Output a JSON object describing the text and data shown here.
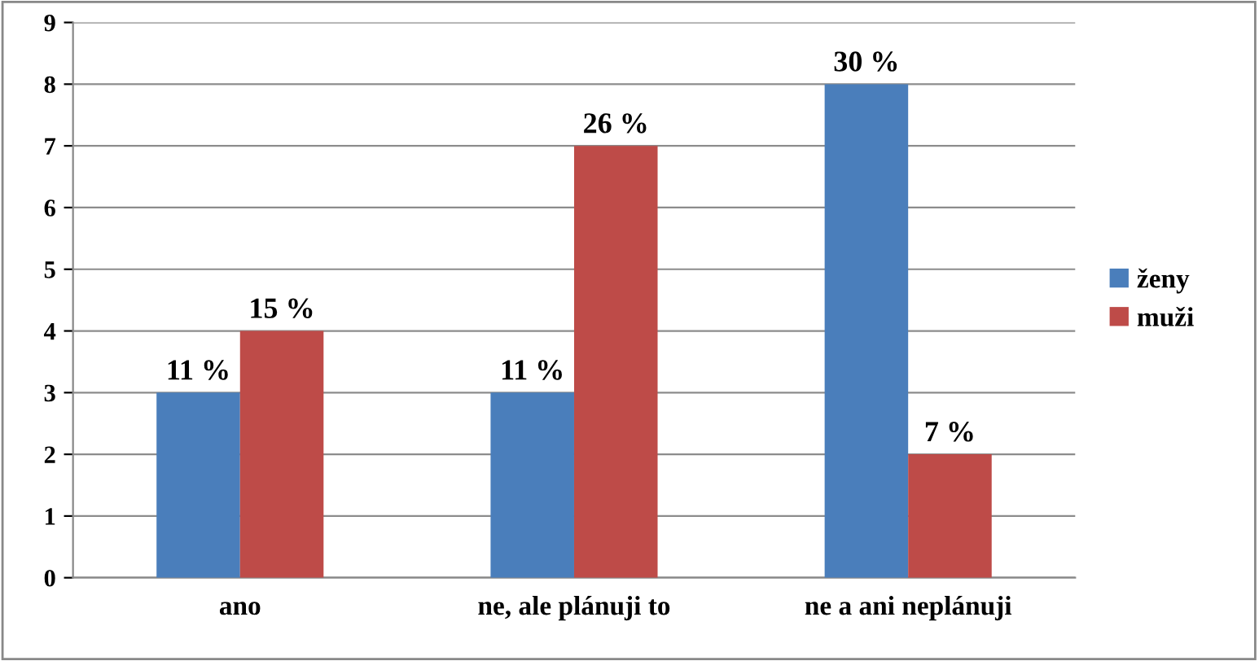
{
  "chart_data": {
    "type": "bar",
    "categories": [
      "ano",
      "ne, ale plánuji to",
      "ne a ani neplánuji"
    ],
    "series": [
      {
        "name": "ženy",
        "color": "#4a7ebb",
        "values": [
          3,
          3,
          8
        ]
      },
      {
        "name": "muži",
        "color": "#be4b48",
        "values": [
          4,
          7,
          2
        ]
      }
    ],
    "annotations": [
      {
        "text": "11 %",
        "x": "ano",
        "y": 3
      },
      {
        "text": "11 %",
        "x": "ne, ale plánuji to",
        "y": 3
      },
      {
        "text": "30 %",
        "x": "ne a ani neplánuji",
        "y": 8
      },
      {
        "text": "15 %",
        "x": "ano",
        "y": 4
      },
      {
        "text": "26 %",
        "x": "ne, ale plánuji to",
        "y": 7
      },
      {
        "text": "7 %",
        "x": "ne a ani neplánuji",
        "y": 2
      }
    ],
    "ylim": [
      0,
      9
    ],
    "yticks": [
      0,
      1,
      2,
      3,
      4,
      5,
      6,
      7,
      8,
      9
    ],
    "grid": "y",
    "legend": "right"
  }
}
